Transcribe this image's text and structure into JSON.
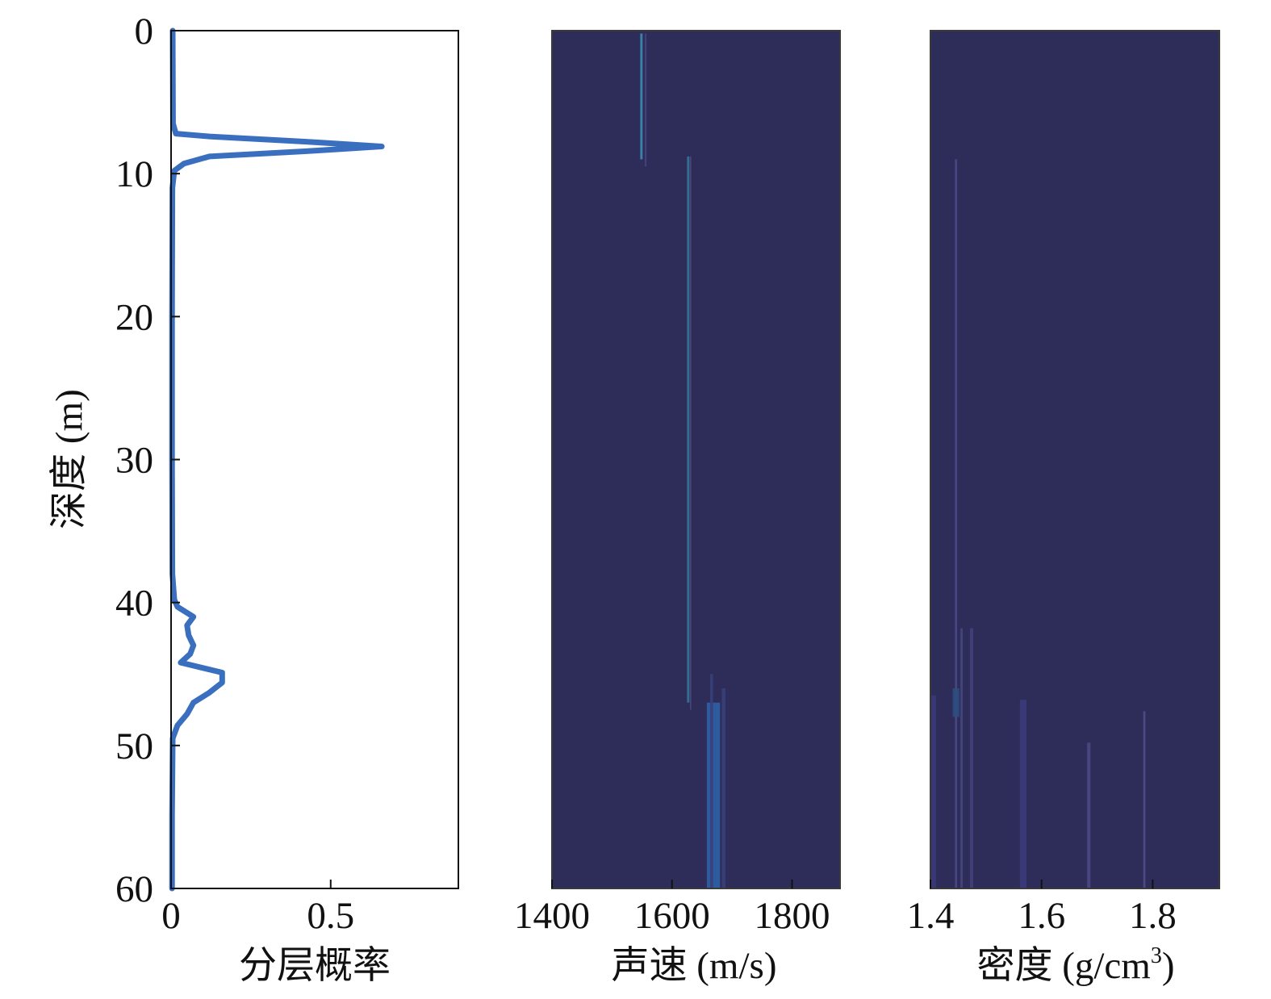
{
  "chart_data": [
    {
      "type": "line",
      "xlabel": "分层概率",
      "ylabel": "深度 (m)",
      "xlim": [
        0,
        0.9
      ],
      "ylim": [
        0,
        60
      ],
      "y_inverted": true,
      "xticks": [
        "0",
        "0.5"
      ],
      "xtick_values": [
        0,
        0.5
      ],
      "yticks": [
        "0",
        "10",
        "20",
        "30",
        "40",
        "50",
        "60"
      ],
      "ytick_values": [
        0,
        10,
        20,
        30,
        40,
        50,
        60
      ],
      "grid": false,
      "line_color": "#3a6fbf",
      "series": [
        {
          "points": [
            {
              "depth": 0,
              "p": 0.005
            },
            {
              "depth": 6.5,
              "p": 0.006
            },
            {
              "depth": 7.2,
              "p": 0.015
            },
            {
              "depth": 7.4,
              "p": 0.12
            },
            {
              "depth": 7.8,
              "p": 0.45
            },
            {
              "depth": 8.1,
              "p": 0.66
            },
            {
              "depth": 8.4,
              "p": 0.45
            },
            {
              "depth": 8.8,
              "p": 0.12
            },
            {
              "depth": 9.3,
              "p": 0.04
            },
            {
              "depth": 9.8,
              "p": 0.01
            },
            {
              "depth": 11,
              "p": 0.004
            },
            {
              "depth": 20,
              "p": 0.003
            },
            {
              "depth": 30,
              "p": 0.003
            },
            {
              "depth": 38,
              "p": 0.004
            },
            {
              "depth": 39.8,
              "p": 0.01
            },
            {
              "depth": 40.3,
              "p": 0.02
            },
            {
              "depth": 41,
              "p": 0.07
            },
            {
              "depth": 41.6,
              "p": 0.05
            },
            {
              "depth": 42.3,
              "p": 0.055
            },
            {
              "depth": 43,
              "p": 0.07
            },
            {
              "depth": 43.6,
              "p": 0.06
            },
            {
              "depth": 44.2,
              "p": 0.03
            },
            {
              "depth": 44.9,
              "p": 0.16
            },
            {
              "depth": 45.6,
              "p": 0.16
            },
            {
              "depth": 46.3,
              "p": 0.12
            },
            {
              "depth": 47,
              "p": 0.07
            },
            {
              "depth": 47.8,
              "p": 0.05
            },
            {
              "depth": 48.6,
              "p": 0.02
            },
            {
              "depth": 49.5,
              "p": 0.005
            },
            {
              "depth": 55,
              "p": 0.003
            },
            {
              "depth": 60,
              "p": 0.003
            }
          ]
        }
      ]
    },
    {
      "type": "heatmap",
      "xlabel": "声速 (m/s)",
      "ylabel": "",
      "xlim": [
        1400,
        1880
      ],
      "ylim": [
        0,
        60
      ],
      "y_inverted": true,
      "xticks": [
        "1400",
        "1600",
        "1800"
      ],
      "xtick_values": [
        1400,
        1600,
        1800
      ],
      "background_color": "#2e2c58",
      "streaks": [
        {
          "x": 1549,
          "width": 4,
          "depth_start": 0.2,
          "depth_end": 9.0,
          "color": "#3d89b0",
          "opacity": 0.9
        },
        {
          "x": 1556,
          "width": 3,
          "depth_start": 0.2,
          "depth_end": 9.5,
          "color": "#4a4a88",
          "opacity": 0.7
        },
        {
          "x": 1627,
          "width": 4,
          "depth_start": 8.8,
          "depth_end": 47.0,
          "color": "#347a9c",
          "opacity": 0.85
        },
        {
          "x": 1631,
          "width": 2,
          "depth_start": 8.8,
          "depth_end": 47.5,
          "color": "#5c5c96",
          "opacity": 0.6
        },
        {
          "x": 1669,
          "width": 22,
          "depth_start": 47.0,
          "depth_end": 60,
          "color": "#2e5a9e",
          "opacity": 1.0
        },
        {
          "x": 1666,
          "width": 5,
          "depth_start": 45.0,
          "depth_end": 60,
          "color": "#37407a",
          "opacity": 0.9
        },
        {
          "x": 1686,
          "width": 6,
          "depth_start": 46.0,
          "depth_end": 60,
          "color": "#37407a",
          "opacity": 0.9
        }
      ]
    },
    {
      "type": "heatmap",
      "xlabel": "密度 (g/cm",
      "xlabel_sup": "3",
      "xlabel_end": ")",
      "ylabel": "",
      "xlim": [
        1.4,
        1.92
      ],
      "ylim": [
        0,
        60
      ],
      "y_inverted": true,
      "xticks": [
        "1.4",
        "1.6",
        "1.8"
      ],
      "xtick_values": [
        1.4,
        1.6,
        1.8
      ],
      "background_color": "#2e2c58",
      "streaks": [
        {
          "x": 1.446,
          "width": 0.004,
          "depth_start": 9.0,
          "depth_end": 60,
          "color": "#4e4e8c",
          "opacity": 0.8
        },
        {
          "x": 1.446,
          "width": 0.012,
          "depth_start": 46.0,
          "depth_end": 48.0,
          "color": "#2c4f7e",
          "opacity": 0.9
        },
        {
          "x": 1.456,
          "width": 0.004,
          "depth_start": 41.8,
          "depth_end": 60,
          "color": "#4e4e8c",
          "opacity": 0.7
        },
        {
          "x": 1.474,
          "width": 0.006,
          "depth_start": 41.8,
          "depth_end": 60,
          "color": "#44447e",
          "opacity": 0.8
        },
        {
          "x": 1.405,
          "width": 0.01,
          "depth_start": 46.5,
          "depth_end": 60,
          "color": "#3a3a78",
          "opacity": 0.9
        },
        {
          "x": 1.567,
          "width": 0.012,
          "depth_start": 46.8,
          "depth_end": 60,
          "color": "#3c3c7c",
          "opacity": 0.85
        },
        {
          "x": 1.685,
          "width": 0.006,
          "depth_start": 49.8,
          "depth_end": 60,
          "color": "#4c4c88",
          "opacity": 0.8
        },
        {
          "x": 1.785,
          "width": 0.004,
          "depth_start": 47.6,
          "depth_end": 60,
          "color": "#54548e",
          "opacity": 0.75
        }
      ]
    }
  ]
}
